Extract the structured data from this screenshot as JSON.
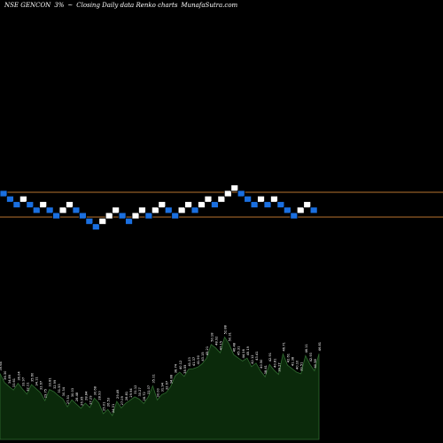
{
  "header": {
    "symbol": "NSE GENCON",
    "brick_size": "3%",
    "symbol_pct": "~",
    "chart_kind": "Closing Daily data  Renko  charts",
    "site": "MunafaSutra.com"
  },
  "colors": {
    "background": "#000000",
    "up_brick": "#ffffff",
    "down_brick": "#1a6fe0",
    "brick_border": "#000000",
    "reference_line": "#b8732f",
    "volume_fill": "#0b2a0b",
    "volume_stroke": "#2f6b2f",
    "label_text": "#ffffff"
  },
  "chart_data": {
    "type": "renko",
    "brick_percent": 3,
    "bricks": [
      {
        "dir": "down",
        "level": 0
      },
      {
        "dir": "down",
        "level": -1
      },
      {
        "dir": "down",
        "level": -2
      },
      {
        "dir": "up",
        "level": -1
      },
      {
        "dir": "down",
        "level": -2
      },
      {
        "dir": "down",
        "level": -3
      },
      {
        "dir": "up",
        "level": -2
      },
      {
        "dir": "down",
        "level": -3
      },
      {
        "dir": "down",
        "level": -4
      },
      {
        "dir": "up",
        "level": -3
      },
      {
        "dir": "up",
        "level": -2
      },
      {
        "dir": "down",
        "level": -3
      },
      {
        "dir": "down",
        "level": -4
      },
      {
        "dir": "down",
        "level": -5
      },
      {
        "dir": "down",
        "level": -6
      },
      {
        "dir": "up",
        "level": -5
      },
      {
        "dir": "up",
        "level": -4
      },
      {
        "dir": "up",
        "level": -3
      },
      {
        "dir": "down",
        "level": -4
      },
      {
        "dir": "down",
        "level": -5
      },
      {
        "dir": "up",
        "level": -4
      },
      {
        "dir": "up",
        "level": -3
      },
      {
        "dir": "down",
        "level": -4
      },
      {
        "dir": "up",
        "level": -3
      },
      {
        "dir": "up",
        "level": -2
      },
      {
        "dir": "down",
        "level": -3
      },
      {
        "dir": "down",
        "level": -4
      },
      {
        "dir": "up",
        "level": -3
      },
      {
        "dir": "up",
        "level": -2
      },
      {
        "dir": "down",
        "level": -3
      },
      {
        "dir": "up",
        "level": -2
      },
      {
        "dir": "up",
        "level": -1
      },
      {
        "dir": "down",
        "level": -2
      },
      {
        "dir": "up",
        "level": -1
      },
      {
        "dir": "up",
        "level": 0
      },
      {
        "dir": "up",
        "level": 1
      },
      {
        "dir": "down",
        "level": 0
      },
      {
        "dir": "down",
        "level": -1
      },
      {
        "dir": "down",
        "level": -2
      },
      {
        "dir": "up",
        "level": -1
      },
      {
        "dir": "down",
        "level": -2
      },
      {
        "dir": "up",
        "level": -1
      },
      {
        "dir": "down",
        "level": -2
      },
      {
        "dir": "down",
        "level": -3
      },
      {
        "dir": "down",
        "level": -4
      },
      {
        "dir": "up",
        "level": -3
      },
      {
        "dir": "up",
        "level": -2
      },
      {
        "dir": "down",
        "level": -3
      }
    ],
    "reference_lines": [
      55.98,
      51.02
    ],
    "volume_labels": [
      "39.64",
      "36.30",
      "34.89",
      "33.61",
      "36.04",
      "33.97",
      "32.11",
      "35.60",
      "34.11",
      "32.67",
      "29.75",
      "33.81",
      "32.99",
      "31.53",
      "30.34",
      "27.51",
      "30.03",
      "28.48",
      "26.95",
      "28.84",
      "27.29",
      "30.68",
      "28.93",
      "25.01",
      "26.53",
      "24.31",
      "29.49",
      "27.09",
      "28.81",
      "29.94",
      "31.12",
      "30.27",
      "28.72",
      "31.07",
      "35.11",
      "30.00",
      "31.94",
      "32.67",
      "34.88",
      "38.74",
      "40.12",
      "38.55",
      "41.23",
      "41.37",
      "41.90",
      "43.15",
      "45.21",
      "50.18",
      "48.92",
      "47.15",
      "52.88",
      "50.31",
      "46.48",
      "45.31",
      "44.16",
      "45.19",
      "42.12",
      "43.41",
      "40.50",
      "38.41",
      "42.91",
      "40.81",
      "39.27",
      "46.71",
      "42.61",
      "41.38",
      "40.10",
      "39.51",
      "46.11",
      "42.93",
      "40.58",
      "46.81"
    ]
  }
}
